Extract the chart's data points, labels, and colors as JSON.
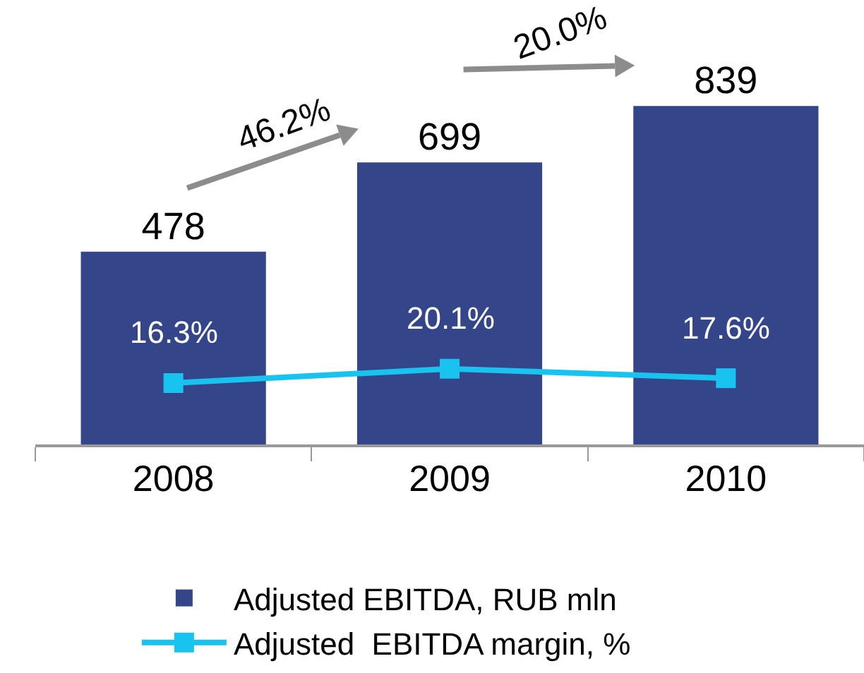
{
  "chart_data": {
    "type": "bar",
    "categories": [
      "2008",
      "2009",
      "2010"
    ],
    "series": [
      {
        "name": "Adjusted EBITDA, RUB mln",
        "color": "#34458a",
        "values": [
          478,
          699,
          839
        ]
      },
      {
        "name": "Adjusted  EBITDA margin, %",
        "type": "line",
        "axis": "y2",
        "color": "#19c3f0",
        "values": [
          16.3,
          20.1,
          17.6
        ],
        "value_labels": [
          "16.3%",
          "20.1%",
          "17.6%"
        ],
        "marker": "square"
      }
    ],
    "tick_labels": "x",
    "data_labels": true,
    "grid": false,
    "legend": "bottom",
    "annotations": [
      "46.2%",
      "20.0%"
    ]
  }
}
